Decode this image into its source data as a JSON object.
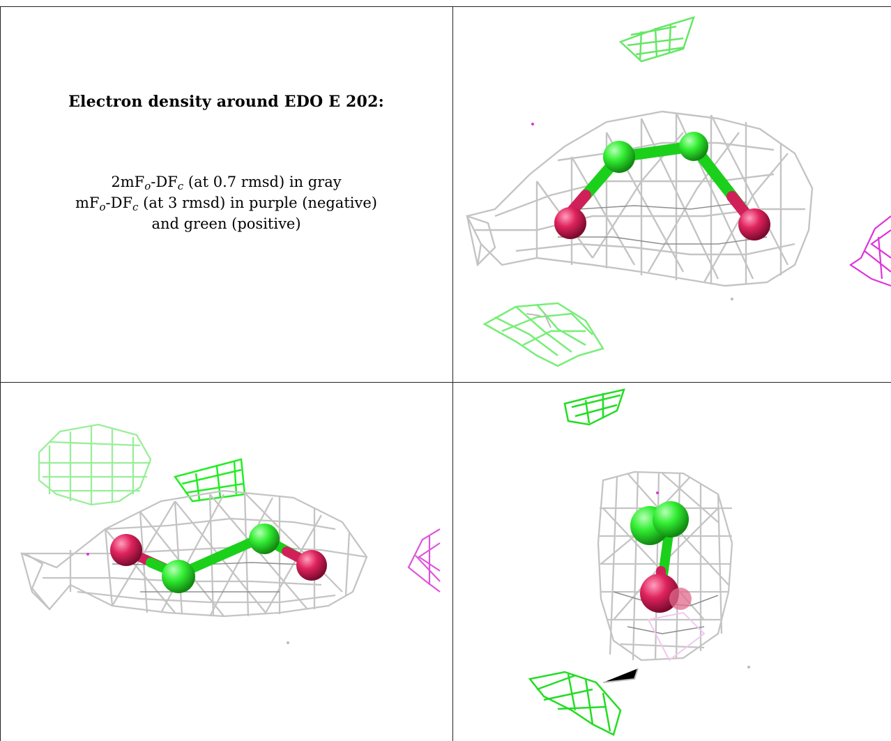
{
  "caption": {
    "title": "Electron density around EDO E 202:",
    "line1": {
      "prefix": "2mF",
      "sub1": "o",
      "mid": "-DF",
      "sub2": "c",
      "suffix": " (at 0.7 rmsd) in gray"
    },
    "line2": {
      "prefix": "mF",
      "sub1": "o",
      "mid": "-DF",
      "sub2": "c",
      "suffix": " (at 3 rmsd) in purple (negative)"
    },
    "line3": "and green (positive)"
  },
  "colors": {
    "gray_mesh": "#c4c4c4",
    "gray_mesh_dark": "#8f8f8f",
    "positive_mesh": "#22ee22",
    "positive_mesh_light": "#88ee88",
    "negative_mesh": "#dd33dd",
    "carbon_atom": "#33ee33",
    "oxygen_atom": "#e0245e",
    "border": "#222222"
  },
  "panels": [
    {
      "name": "top-right-view",
      "icon": "electron-density-view-1"
    },
    {
      "name": "bottom-left-view",
      "icon": "electron-density-view-2"
    },
    {
      "name": "bottom-right-view",
      "icon": "electron-density-view-3"
    }
  ]
}
